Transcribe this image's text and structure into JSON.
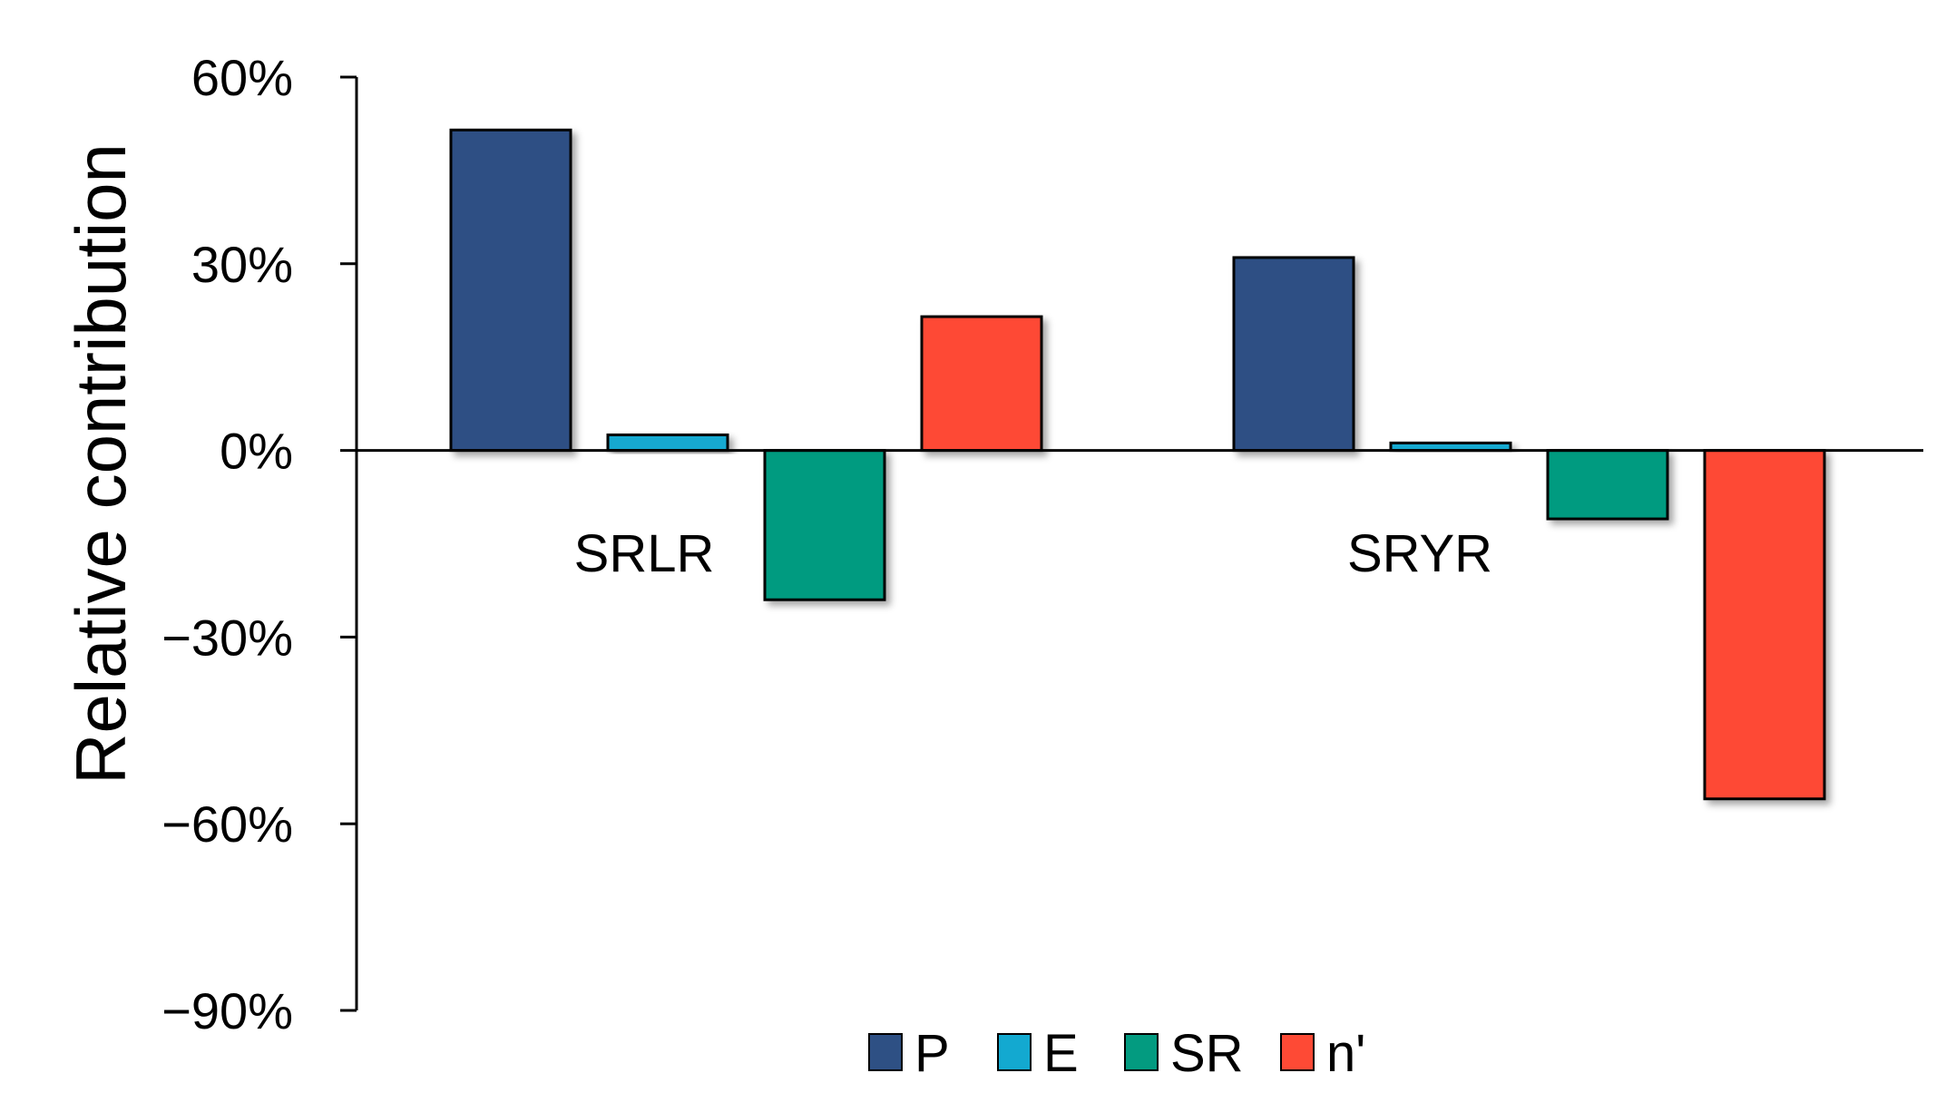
{
  "chart_data": {
    "type": "bar",
    "title": "",
    "xlabel": "",
    "ylabel": "Relative contribution",
    "ylim": [
      -90,
      60
    ],
    "y_ticks": [
      60,
      30,
      0,
      -30,
      -60,
      -90
    ],
    "y_tick_labels": [
      "60%",
      "30%",
      "0%",
      "−30%",
      "−60%",
      "−90%"
    ],
    "y_unit": "%",
    "categories": [
      "SRLR",
      "SRYR"
    ],
    "series": [
      {
        "name": "P",
        "color": "#2e5084",
        "values": [
          51.5,
          31
        ]
      },
      {
        "name": "E",
        "color": "#13a9d0",
        "values": [
          2.5,
          1.2
        ]
      },
      {
        "name": "SR",
        "color": "#039b80",
        "values": [
          -24,
          -11
        ]
      },
      {
        "name": "n'",
        "color": "#fe4a35",
        "values": [
          21.5,
          -56
        ]
      }
    ],
    "legend_position": "bottom",
    "grid": false
  }
}
